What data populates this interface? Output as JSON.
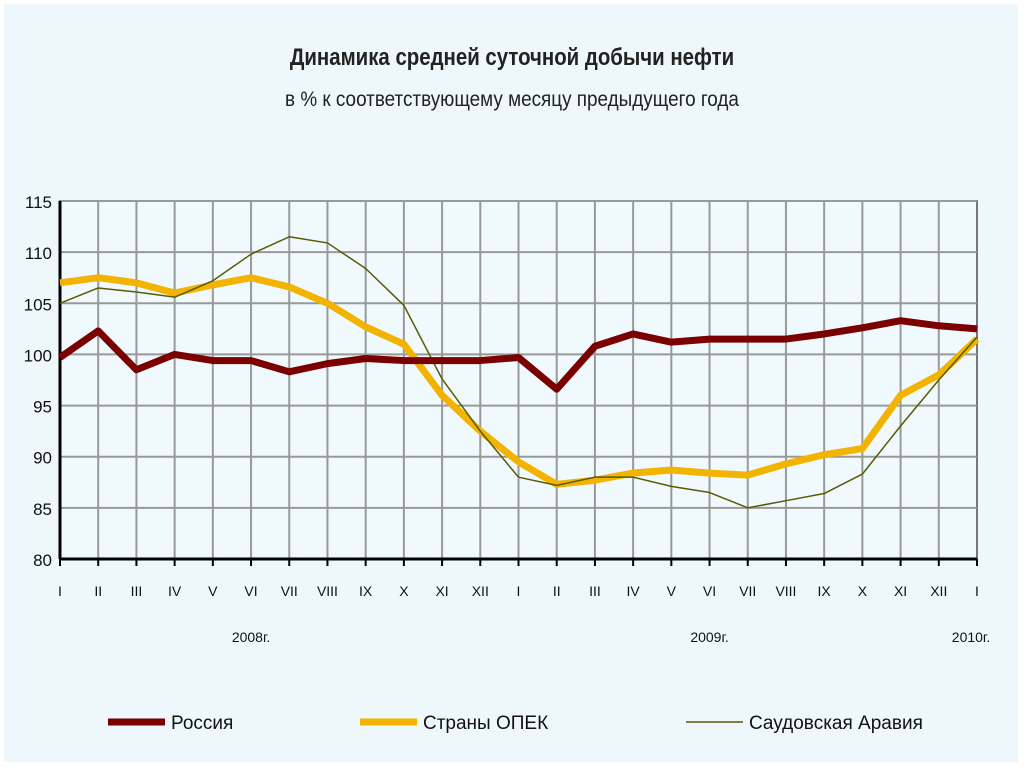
{
  "chart_data": {
    "type": "line",
    "title": "Динамика средней суточной добычи нефти",
    "subtitle": "в % к соответствующему месяцу предыдущего года",
    "ylim": [
      80,
      115
    ],
    "yticks": [
      80,
      85,
      90,
      95,
      100,
      105,
      110,
      115
    ],
    "categories": [
      "I",
      "II",
      "III",
      "IV",
      "V",
      "VI",
      "VII",
      "VIII",
      "IX",
      "X",
      "XI",
      "XII",
      "I",
      "II",
      "III",
      "IV",
      "V",
      "VI",
      "VII",
      "VIII",
      "IX",
      "X",
      "XI",
      "XII",
      "I"
    ],
    "year_labels": [
      {
        "label": "2008г.",
        "index": 5
      },
      {
        "label": "2009г.",
        "index": 17
      },
      {
        "label": "2010г.",
        "index": 24
      }
    ],
    "grid": true,
    "legend_position": "bottom",
    "series": [
      {
        "name": "Россия",
        "color": "#7b0000",
        "values": [
          99.7,
          102.3,
          98.5,
          100,
          99.4,
          99.4,
          98.3,
          99.1,
          99.6,
          99.4,
          99.4,
          99.4,
          99.7,
          96.6,
          100.8,
          102,
          101.2,
          101.5,
          101.5,
          101.5,
          102,
          102.6,
          103.3,
          102.8,
          102.5
        ]
      },
      {
        "name": "Страны ОПЕК",
        "color": "#f2b400",
        "values": [
          107,
          107.5,
          107,
          106,
          106.8,
          107.5,
          106.6,
          105,
          102.7,
          101,
          96,
          92.5,
          89.5,
          87.3,
          87.7,
          88.4,
          88.7,
          88.4,
          88.2,
          89.3,
          90.2,
          90.8,
          96,
          98,
          101.5
        ]
      },
      {
        "name": "Саудовская Аравия",
        "color": "#5a5a00",
        "values": [
          105,
          106.5,
          106.1,
          105.6,
          107.2,
          109.8,
          111.5,
          110.9,
          108.4,
          104.8,
          97.6,
          92.5,
          88,
          87.2,
          88,
          88,
          87.1,
          86.5,
          85,
          85.7,
          86.4,
          88.3,
          93,
          97.5,
          101.7
        ]
      }
    ]
  }
}
